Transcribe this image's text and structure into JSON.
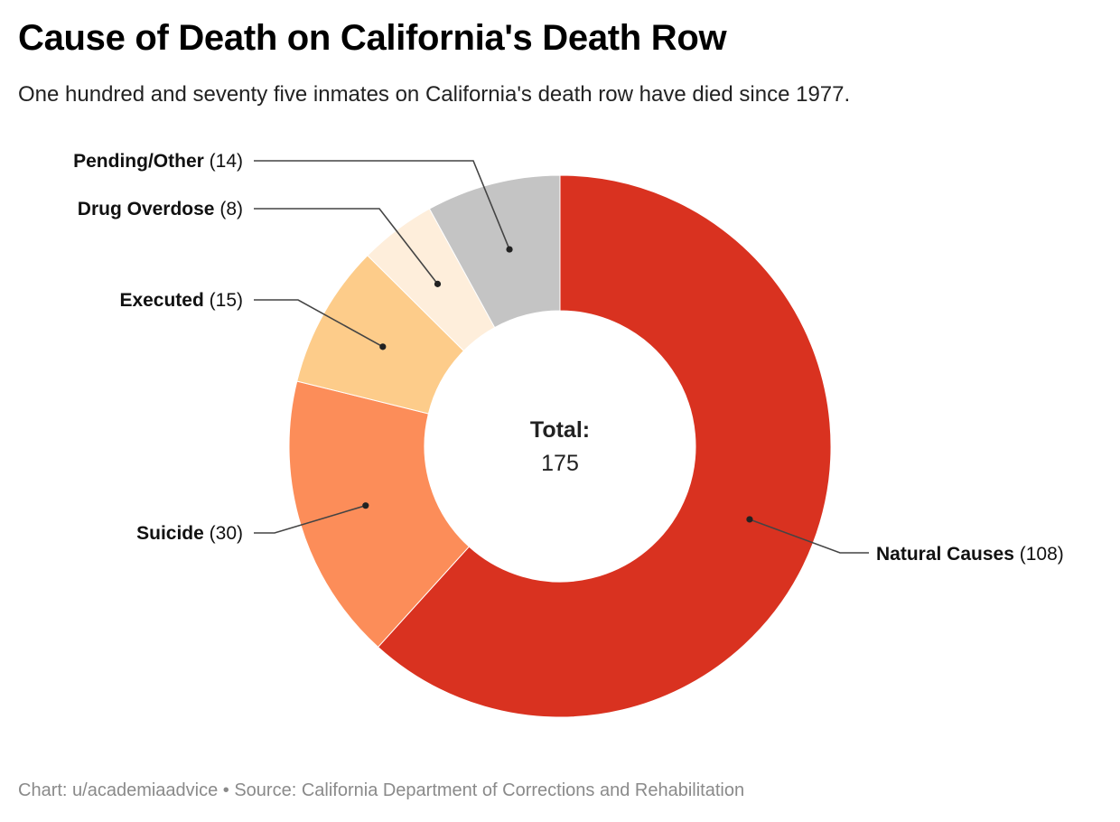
{
  "header": {
    "title": "Cause of Death on California's Death Row",
    "subtitle": "One hundred and seventy five inmates on California's death row have died since 1977."
  },
  "footer": {
    "credit": "Chart: u/academiaadvice • Source: California Department of Corrections and Rehabilitation"
  },
  "chart_data": {
    "type": "pie",
    "variant": "donut",
    "title": "Cause of Death on California's Death Row",
    "center_label": "Total:",
    "center_value": "175",
    "slices": [
      {
        "name": "Natural Causes",
        "value": 108,
        "value_label": "(108)",
        "color": "#d93220"
      },
      {
        "name": "Suicide",
        "value": 30,
        "value_label": "(30)",
        "color": "#fc8d59"
      },
      {
        "name": "Executed",
        "value": 15,
        "value_label": "(15)",
        "color": "#fdcc8a"
      },
      {
        "name": "Drug Overdose",
        "value": 8,
        "value_label": "(8)",
        "color": "#feeedb"
      },
      {
        "name": "Pending/Other",
        "value": 14,
        "value_label": "(14)",
        "color": "#c4c4c4"
      }
    ],
    "start_angle": "12 o'clock",
    "direction": "clockwise",
    "label_style": "callouts with leader lines"
  }
}
